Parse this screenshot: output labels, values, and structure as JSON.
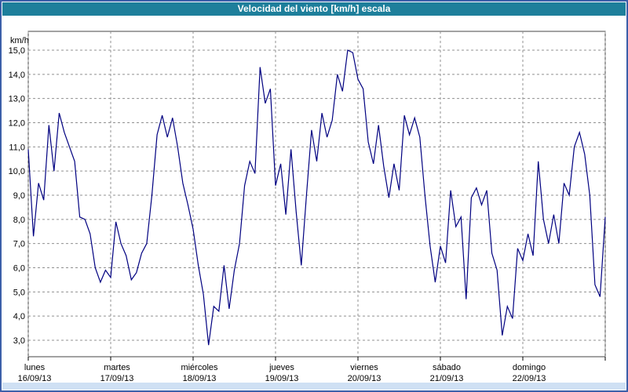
{
  "window": {
    "title": "Velocidad del viento [km/h] escala"
  },
  "colors": {
    "header_bg": "#1e7f9b",
    "frame_border": "#3c5fa9",
    "line": "#000080",
    "grid": "#909090",
    "plot_border": "#444444",
    "bottom_strip": "#cfe0f4",
    "text": "#000000"
  },
  "chart_data": {
    "type": "line",
    "title": "Velocidad del viento [km/h] escala",
    "ylabel": "km/h",
    "xlabel": "",
    "ylim": [
      3,
      15
    ],
    "grid": "dashed",
    "legend": "none",
    "ytick_values": [
      3,
      4,
      5,
      6,
      7,
      8,
      9,
      10,
      11,
      12,
      13,
      14,
      15
    ],
    "ytick_labels": [
      "3,0",
      "4,0",
      "5,0",
      "6,0",
      "7,0",
      "8,0",
      "9,0",
      "10,0",
      "11,0",
      "12,0",
      "13,0",
      "14,0",
      "15,0"
    ],
    "days": [
      {
        "label": "lunes",
        "date": "16/09/13"
      },
      {
        "label": "martes",
        "date": "17/09/13"
      },
      {
        "label": "miércoles",
        "date": "18/09/13"
      },
      {
        "label": "jueves",
        "date": "19/09/13"
      },
      {
        "label": "viernes",
        "date": "20/09/13"
      },
      {
        "label": "sábado",
        "date": "21/09/13"
      },
      {
        "label": "domingo",
        "date": "22/09/13"
      }
    ],
    "points_per_day": 16,
    "x_unit": "days",
    "values": [
      10.9,
      7.3,
      9.5,
      8.8,
      11.9,
      10.0,
      12.4,
      11.6,
      11.0,
      10.4,
      8.1,
      8.0,
      7.4,
      6.0,
      5.4,
      5.9,
      5.6,
      7.9,
      7.0,
      6.5,
      5.5,
      5.8,
      6.6,
      7.0,
      9.0,
      11.5,
      12.3,
      11.4,
      12.2,
      11.0,
      9.5,
      8.6,
      7.6,
      6.1,
      4.9,
      2.8,
      4.4,
      4.2,
      6.1,
      4.3,
      5.9,
      7.0,
      9.4,
      10.4,
      9.9,
      14.3,
      12.8,
      13.4,
      9.4,
      10.3,
      8.2,
      10.9,
      8.3,
      6.1,
      9.0,
      11.7,
      10.4,
      12.4,
      11.4,
      12.1,
      14.0,
      13.3,
      15.0,
      14.9,
      13.8,
      13.4,
      11.2,
      10.3,
      11.9,
      10.2,
      8.9,
      10.3,
      9.2,
      12.3,
      11.5,
      12.2,
      11.4,
      9.0,
      6.9,
      5.4,
      6.9,
      6.2,
      9.2,
      7.7,
      8.1,
      4.7,
      8.9,
      9.3,
      8.6,
      9.2,
      6.6,
      5.9,
      3.2,
      4.4,
      3.9,
      6.8,
      6.3,
      7.4,
      6.5,
      10.4,
      8.0,
      7.0,
      8.2,
      7.0,
      9.5,
      9.0,
      11.0,
      11.6,
      10.7,
      9.0,
      5.3,
      4.8,
      8.1
    ]
  }
}
